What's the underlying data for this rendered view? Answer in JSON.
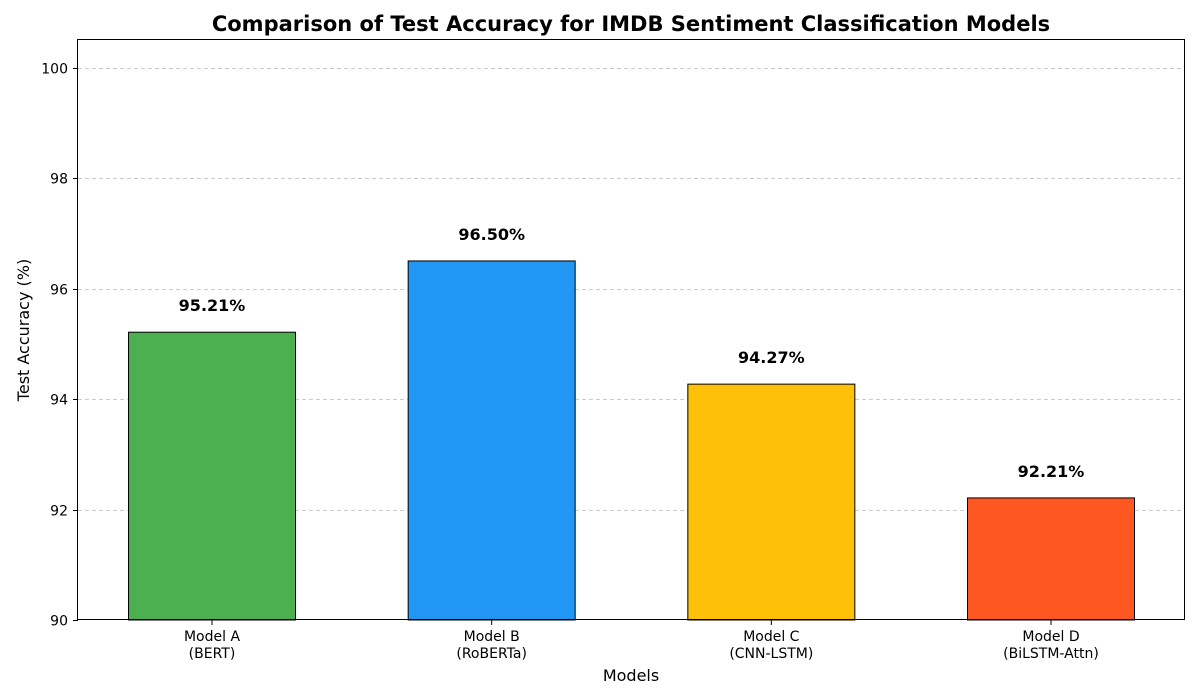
{
  "chart_data": {
    "type": "bar",
    "title": "Comparison of Test Accuracy for IMDB Sentiment Classification Models",
    "xlabel": "Models",
    "ylabel": "Test Accuracy (%)",
    "categories": [
      [
        "Model A",
        "(BERT)"
      ],
      [
        "Model B",
        "(RoBERTa)"
      ],
      [
        "Model C",
        "(CNN-LSTM)"
      ],
      [
        "Model D",
        "(BiLSTM-Attn)"
      ]
    ],
    "values": [
      95.21,
      96.5,
      94.27,
      92.21
    ],
    "value_labels": [
      "95.21%",
      "96.50%",
      "94.27%",
      "92.21%"
    ],
    "colors": [
      "#4caf50",
      "#2196f3",
      "#ffc107",
      "#ff5722"
    ],
    "ylim": [
      90,
      100.5
    ],
    "yticks": [
      90,
      92,
      94,
      96,
      98,
      100
    ],
    "grid": true
  }
}
